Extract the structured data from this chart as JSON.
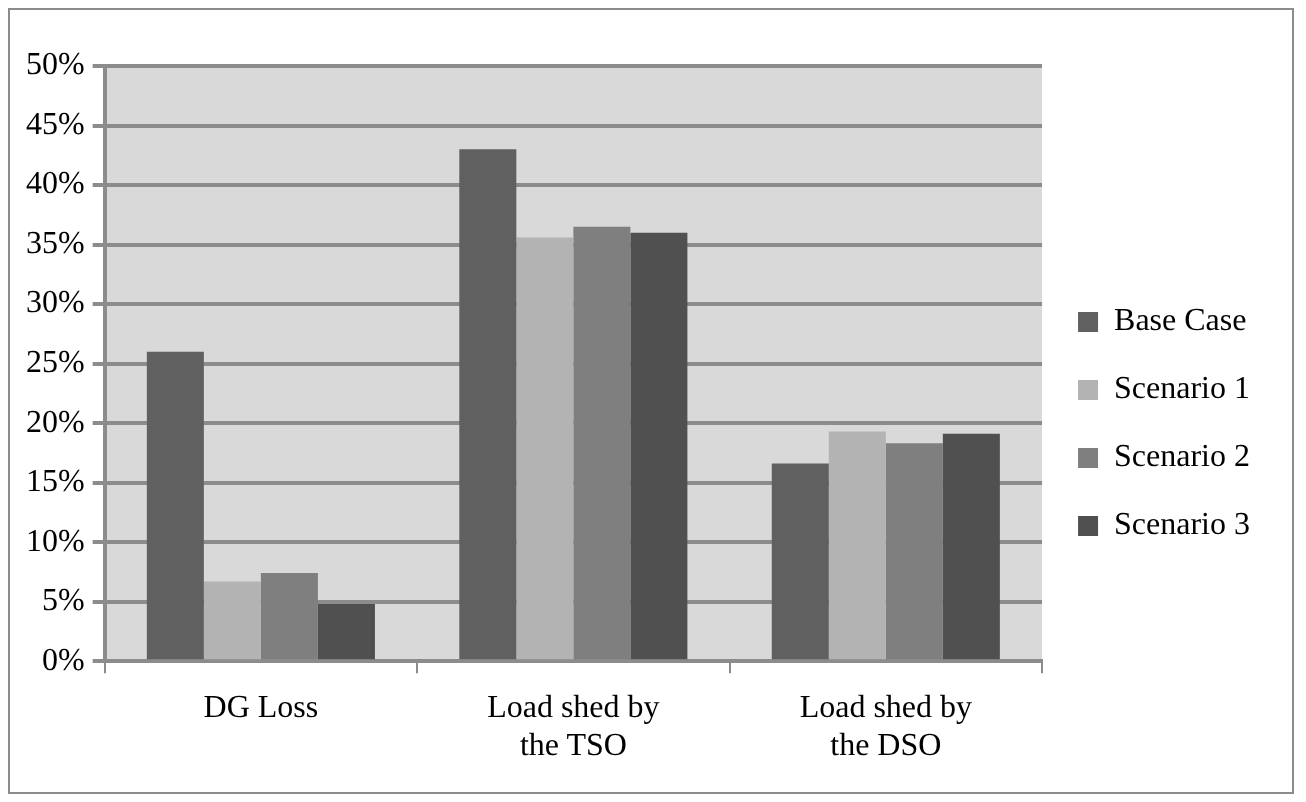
{
  "chart_data": {
    "type": "bar",
    "categories": [
      "DG Loss",
      "Load shed by the TSO",
      "Load shed by the DSO"
    ],
    "series": [
      {
        "name": "Base Case",
        "color": "#606060",
        "values": [
          26.0,
          43.0,
          16.6
        ]
      },
      {
        "name": "Scenario 1",
        "color": "#b3b3b3",
        "values": [
          6.7,
          35.6,
          19.3
        ]
      },
      {
        "name": "Scenario 2",
        "color": "#7f7f7f",
        "values": [
          7.4,
          36.5,
          18.3
        ]
      },
      {
        "name": "Scenario 3",
        "color": "#505050",
        "values": [
          4.8,
          36.0,
          19.1
        ]
      }
    ],
    "ylim": [
      0,
      50
    ],
    "yticks": [
      {
        "value": 0,
        "label": "0%"
      },
      {
        "value": 5,
        "label": "5%"
      },
      {
        "value": 10,
        "label": "10%"
      },
      {
        "value": 15,
        "label": "15%"
      },
      {
        "value": 20,
        "label": "20%"
      },
      {
        "value": 25,
        "label": "25%"
      },
      {
        "value": 30,
        "label": "30%"
      },
      {
        "value": 35,
        "label": "35%"
      },
      {
        "value": 40,
        "label": "40%"
      },
      {
        "value": 45,
        "label": "45%"
      },
      {
        "value": 50,
        "label": "50%"
      }
    ],
    "grid": "y",
    "legend": "right"
  }
}
